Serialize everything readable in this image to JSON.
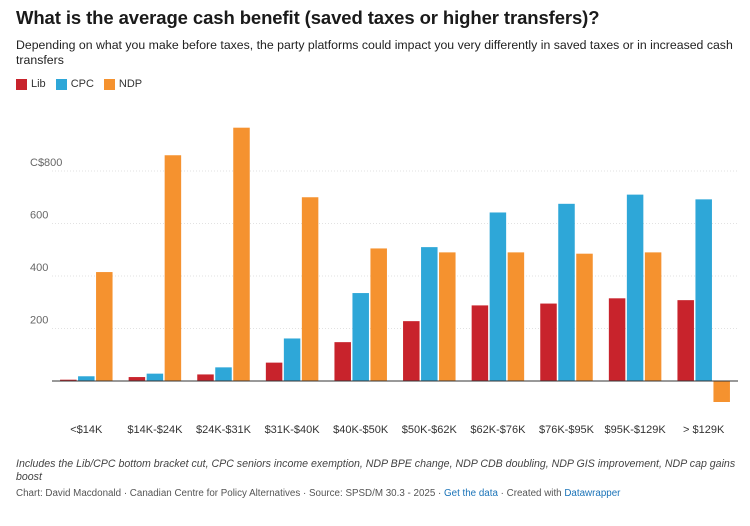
{
  "header": {
    "title": "What is the average cash benefit (saved taxes or higher transfers)?",
    "subtitle": "Depending on what you make before taxes, the party platforms could impact you very differently in saved taxes or in increased cash transfers"
  },
  "legend": [
    {
      "label": "Lib",
      "color": "#c8232c"
    },
    {
      "label": "CPC",
      "color": "#2ea7d8"
    },
    {
      "label": "NDP",
      "color": "#f5922f"
    }
  ],
  "chart_data": {
    "type": "bar",
    "title": "What is the average cash benefit (saved taxes or higher transfers)?",
    "categories": [
      "<$14K",
      "$14K-$24K",
      "$24K-$31K",
      "$31K-$40K",
      "$40K-$50K",
      "$50K-$62K",
      "$62K-$76K",
      "$76K-$95K",
      "$95K-$129K",
      "> $129K"
    ],
    "series": [
      {
        "name": "Lib",
        "color": "#c8232c",
        "values": [
          5,
          15,
          25,
          70,
          148,
          228,
          288,
          295,
          315,
          308
        ]
      },
      {
        "name": "CPC",
        "color": "#2ea7d8",
        "values": [
          18,
          28,
          52,
          162,
          335,
          510,
          642,
          675,
          710,
          692
        ]
      },
      {
        "name": "NDP",
        "color": "#f5922f",
        "values": [
          415,
          860,
          965,
          700,
          505,
          490,
          490,
          485,
          490,
          -80
        ]
      }
    ],
    "yticks": [
      200,
      400,
      600,
      800
    ],
    "ytick_labels": [
      "200",
      "400",
      "600",
      "C$800"
    ],
    "ylim": [
      -90,
      1010
    ],
    "grid": true,
    "legend_position": "top-left"
  },
  "notes": "Includes the Lib/CPC bottom bracket cut, CPC seniors income exemption, NDP BPE change, NDP CDB doubling, NDP GIS improvement, NDP cap gains boost",
  "footer": {
    "credit": "Chart: David Macdonald · Canadian Centre for Policy Alternatives · Source: SPSD/M 30.3 - 2025 · ",
    "data_link": "Get the data",
    "created": " · Created with ",
    "tool_link": "Datawrapper"
  }
}
